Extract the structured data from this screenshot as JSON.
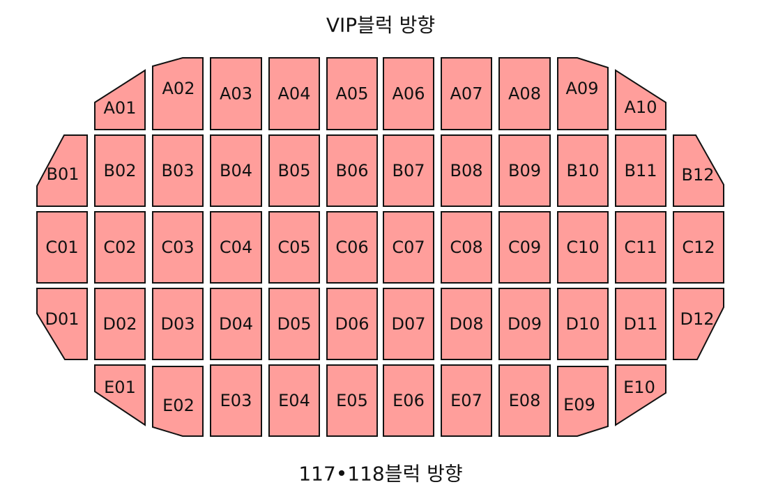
{
  "header": {
    "top_direction": "VIP블럭 방향"
  },
  "footer": {
    "bottom_direction": "117•118블럭 방향"
  },
  "colors": {
    "block_fill": "#ff9e9b",
    "block_stroke": "#111111",
    "background": "#ffffff"
  },
  "rows": {
    "A": [
      "A01",
      "A02",
      "A03",
      "A04",
      "A05",
      "A06",
      "A07",
      "A08",
      "A09",
      "A10"
    ],
    "B": [
      "B01",
      "B02",
      "B03",
      "B04",
      "B05",
      "B06",
      "B07",
      "B08",
      "B09",
      "B10",
      "B11",
      "B12"
    ],
    "C": [
      "C01",
      "C02",
      "C03",
      "C04",
      "C05",
      "C06",
      "C07",
      "C08",
      "C09",
      "C10",
      "C11",
      "C12"
    ],
    "D": [
      "D01",
      "D02",
      "D03",
      "D04",
      "D05",
      "D06",
      "D07",
      "D08",
      "D09",
      "D10",
      "D11",
      "D12"
    ],
    "E": [
      "E01",
      "E02",
      "E03",
      "E04",
      "E05",
      "E06",
      "E07",
      "E08",
      "E09",
      "E10"
    ]
  }
}
